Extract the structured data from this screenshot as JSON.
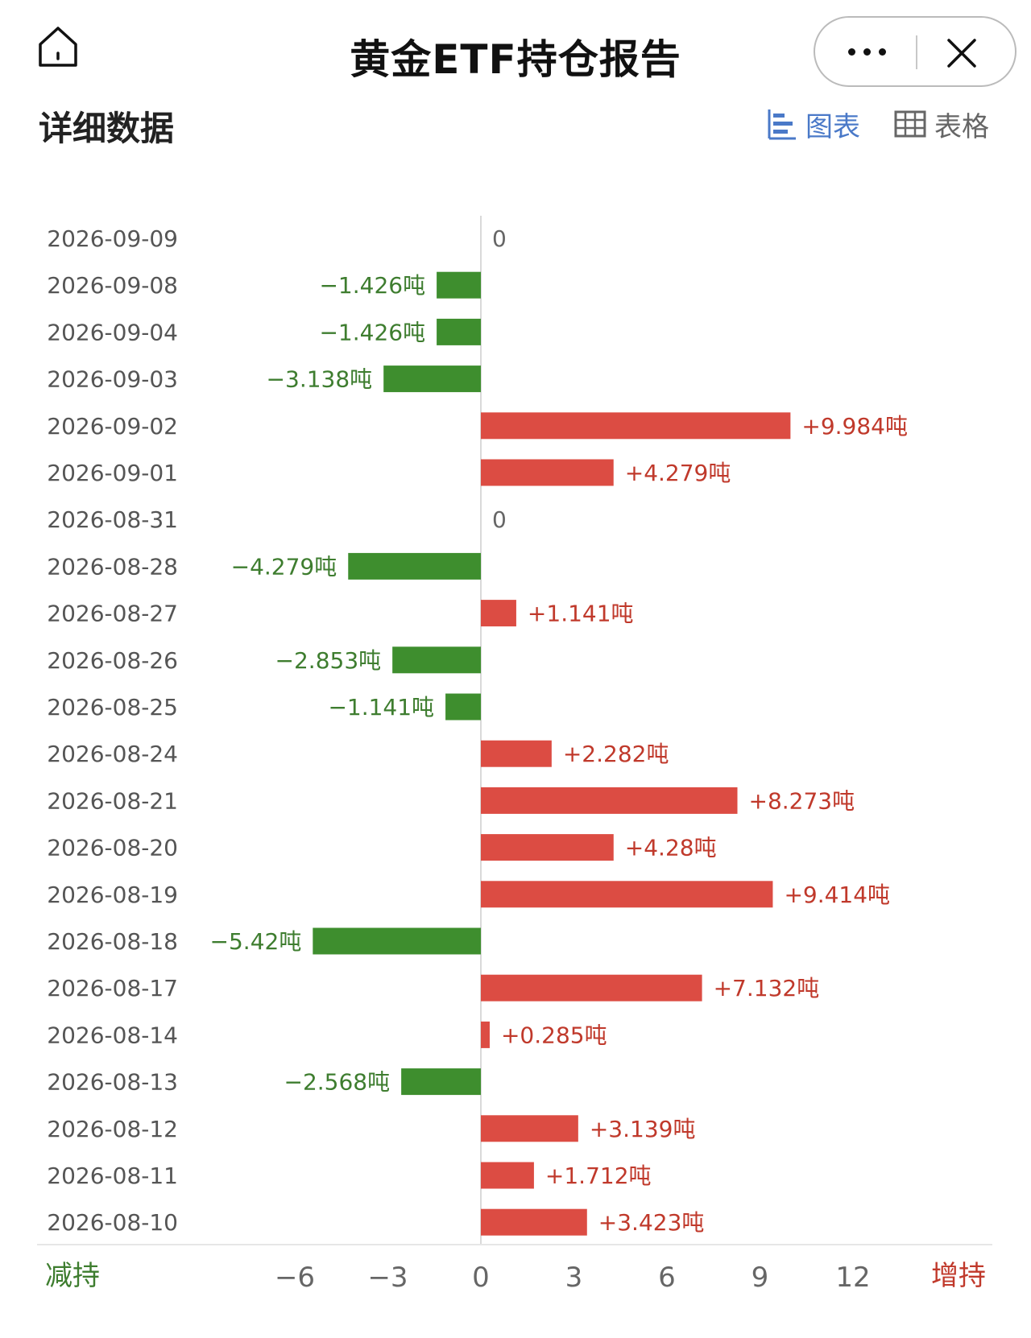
{
  "header": {
    "title": "黄金ETF持仓报告"
  },
  "section": {
    "title": "详细数据"
  },
  "view_toggle": {
    "chart_label": "图表",
    "table_label": "表格",
    "active": "chart"
  },
  "icons": {
    "home": "home-icon",
    "more": "more-dots-icon",
    "close": "close-icon",
    "chart_view": "bar-chart-icon",
    "table_view": "table-grid-icon"
  },
  "colors": {
    "positive": "#dc4c43",
    "negative": "#3e8e2e",
    "positive_text": "#c0392b",
    "negative_text": "#3e7d2f",
    "accent": "#4a79c8"
  },
  "chart_data": {
    "type": "bar",
    "orientation": "horizontal",
    "unit": "吨",
    "categories": [
      "2026-09-09",
      "2026-09-08",
      "2026-09-04",
      "2026-09-03",
      "2026-09-02",
      "2026-09-01",
      "2026-08-31",
      "2026-08-28",
      "2026-08-27",
      "2026-08-26",
      "2026-08-25",
      "2026-08-24",
      "2026-08-21",
      "2026-08-20",
      "2026-08-19",
      "2026-08-18",
      "2026-08-17",
      "2026-08-14",
      "2026-08-13",
      "2026-08-12",
      "2026-08-11",
      "2026-08-10"
    ],
    "values": [
      0,
      -1.426,
      -1.426,
      -3.138,
      9.984,
      4.279,
      0,
      -4.279,
      1.141,
      -2.853,
      -1.141,
      2.282,
      8.273,
      4.28,
      9.414,
      -5.42,
      7.132,
      0.285,
      -2.568,
      3.139,
      1.712,
      3.423
    ],
    "value_labels": [
      "0",
      "−1.426吨",
      "−1.426吨",
      "−3.138吨",
      "+9.984吨",
      "+4.279吨",
      "0",
      "−4.279吨",
      "+1.141吨",
      "−2.853吨",
      "−1.141吨",
      "+2.282吨",
      "+8.273吨",
      "+4.28吨",
      "+9.414吨",
      "−5.42吨",
      "+7.132吨",
      "+0.285吨",
      "−2.568吨",
      "+3.139吨",
      "+1.712吨",
      "+3.423吨"
    ],
    "x_ticks": [
      "−6",
      "−3",
      "0",
      "3",
      "6",
      "9",
      "12"
    ],
    "xlim": [
      -6,
      12
    ],
    "x_left_label": "减持",
    "x_right_label": "增持",
    "grid": false
  }
}
